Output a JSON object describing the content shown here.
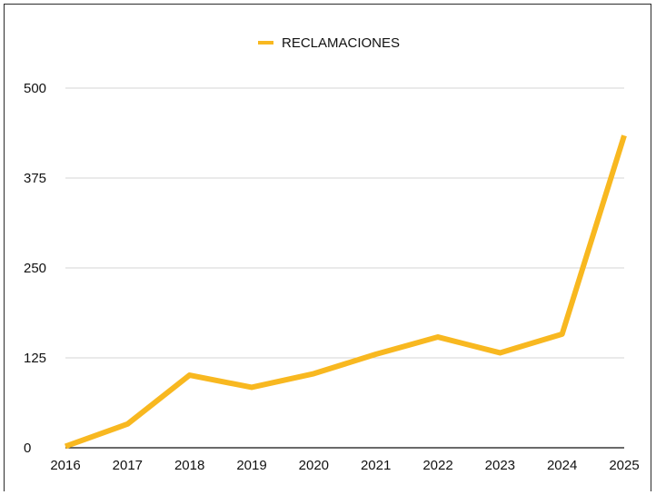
{
  "chart_data": {
    "type": "line",
    "title": "",
    "xlabel": "",
    "ylabel": "",
    "x": [
      "2016",
      "2017",
      "2018",
      "2019",
      "2020",
      "2021",
      "2022",
      "2023",
      "2024",
      "2025"
    ],
    "series": [
      {
        "name": "RECLAMACIONES",
        "color": "#F8B820",
        "values": [
          2,
          33,
          101,
          84,
          103,
          130,
          154,
          132,
          158,
          434
        ]
      }
    ],
    "ylim": [
      0,
      500
    ],
    "yticks": [
      "0",
      "125",
      "250",
      "375",
      "500"
    ],
    "grid": true,
    "legend_position": "top-center"
  }
}
